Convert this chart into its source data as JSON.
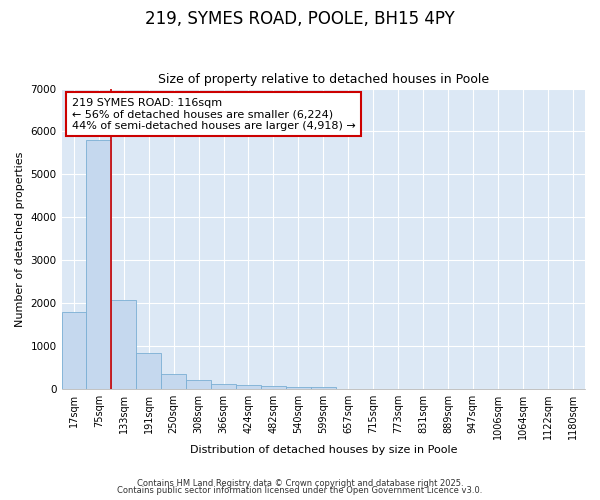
{
  "title": "219, SYMES ROAD, POOLE, BH15 4PY",
  "subtitle": "Size of property relative to detached houses in Poole",
  "xlabel": "Distribution of detached houses by size in Poole",
  "ylabel": "Number of detached properties",
  "bar_labels": [
    "17sqm",
    "75sqm",
    "133sqm",
    "191sqm",
    "250sqm",
    "308sqm",
    "366sqm",
    "424sqm",
    "482sqm",
    "540sqm",
    "599sqm",
    "657sqm",
    "715sqm",
    "773sqm",
    "831sqm",
    "889sqm",
    "947sqm",
    "1006sqm",
    "1064sqm",
    "1122sqm",
    "1180sqm"
  ],
  "bar_values": [
    1800,
    5800,
    2080,
    840,
    350,
    210,
    110,
    90,
    80,
    50,
    50,
    0,
    0,
    0,
    0,
    0,
    0,
    0,
    0,
    0,
    0
  ],
  "bar_color": "#c5d8ee",
  "bar_edge_color": "#7aafd4",
  "fig_background_color": "#ffffff",
  "ax_background_color": "#dce8f5",
  "grid_color": "#ffffff",
  "red_line_x": 1.5,
  "annotation_text": "219 SYMES ROAD: 116sqm\n← 56% of detached houses are smaller (6,224)\n44% of semi-detached houses are larger (4,918) →",
  "annotation_box_color": "#ffffff",
  "annotation_border_color": "#cc0000",
  "red_line_color": "#cc0000",
  "ylim": [
    0,
    7000
  ],
  "yticks": [
    0,
    1000,
    2000,
    3000,
    4000,
    5000,
    6000,
    7000
  ],
  "footer_line1": "Contains HM Land Registry data © Crown copyright and database right 2025.",
  "footer_line2": "Contains public sector information licensed under the Open Government Licence v3.0.",
  "title_fontsize": 12,
  "subtitle_fontsize": 9,
  "tick_fontsize": 7,
  "ylabel_fontsize": 8,
  "xlabel_fontsize": 8,
  "footer_fontsize": 6
}
